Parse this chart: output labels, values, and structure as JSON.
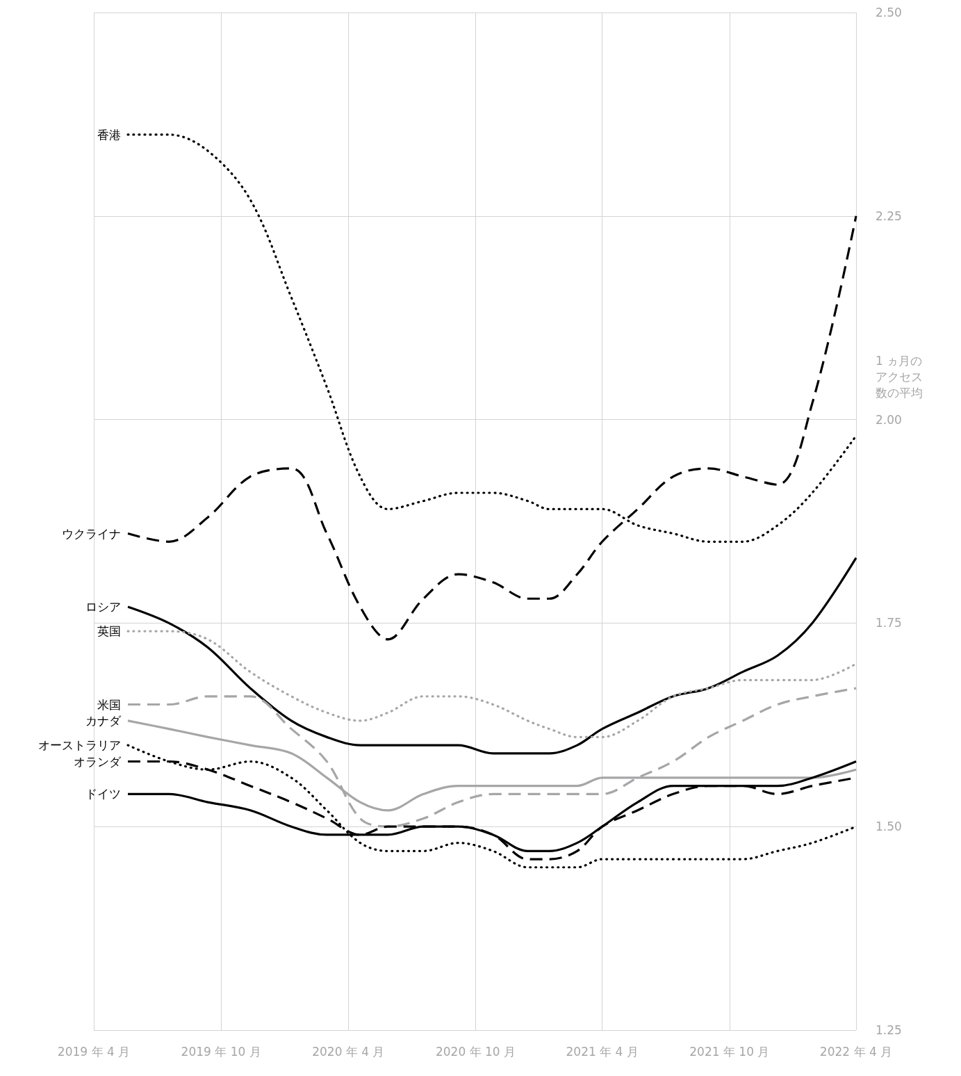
{
  "chart_data": {
    "type": "line",
    "ylabel": "1 ヵ月のアクセス数の平均",
    "x": [
      "2019-05-20",
      "2019-07-18",
      "2019-09-12",
      "2019-11-12",
      "2020-01-10",
      "2020-03-01",
      "2020-04-18",
      "2020-05-28",
      "2020-07-18",
      "2020-09-06",
      "2020-10-26",
      "2020-12-15",
      "2021-01-15",
      "2021-02-24",
      "2021-04-01",
      "2021-05-22",
      "2021-07-12",
      "2021-09-01",
      "2021-10-20",
      "2021-12-09",
      "2022-01-28",
      "2022-04-01"
    ],
    "series": [
      {
        "name": "香港",
        "color": "#000000",
        "line_style": "dotted",
        "values": [
          2.35,
          2.35,
          2.33,
          2.27,
          2.15,
          2.04,
          1.93,
          1.89,
          1.9,
          1.91,
          1.91,
          1.9,
          1.89,
          1.89,
          1.89,
          1.87,
          1.86,
          1.85,
          1.85,
          1.87,
          1.91,
          1.98
        ]
      },
      {
        "name": "ウクライナ",
        "color": "#000000",
        "line_style": "dashed",
        "values": [
          1.86,
          1.85,
          1.88,
          1.93,
          1.94,
          1.86,
          1.77,
          1.73,
          1.78,
          1.81,
          1.8,
          1.78,
          1.78,
          1.81,
          1.85,
          1.89,
          1.93,
          1.94,
          1.93,
          1.92,
          2.02,
          2.25
        ]
      },
      {
        "name": "ロシア",
        "color": "#000000",
        "line_style": "solid",
        "values": [
          1.77,
          1.75,
          1.72,
          1.67,
          1.63,
          1.61,
          1.6,
          1.6,
          1.6,
          1.6,
          1.59,
          1.59,
          1.59,
          1.6,
          1.62,
          1.64,
          1.66,
          1.67,
          1.69,
          1.71,
          1.75,
          1.83
        ]
      },
      {
        "name": "英国",
        "color": "#a6a6a8",
        "line_style": "dotted",
        "values": [
          1.74,
          1.74,
          1.73,
          1.69,
          1.66,
          1.64,
          1.63,
          1.64,
          1.66,
          1.66,
          1.65,
          1.63,
          1.62,
          1.61,
          1.61,
          1.63,
          1.66,
          1.67,
          1.68,
          1.68,
          1.68,
          1.7
        ]
      },
      {
        "name": "米国",
        "color": "#a6a6a8",
        "line_style": "dashed",
        "values": [
          1.65,
          1.65,
          1.66,
          1.66,
          1.62,
          1.58,
          1.51,
          1.5,
          1.51,
          1.53,
          1.54,
          1.54,
          1.54,
          1.54,
          1.54,
          1.56,
          1.58,
          1.61,
          1.63,
          1.65,
          1.66,
          1.67
        ]
      },
      {
        "name": "カナダ",
        "color": "#a6a6a8",
        "line_style": "solid",
        "values": [
          1.63,
          1.62,
          1.61,
          1.6,
          1.59,
          1.56,
          1.53,
          1.52,
          1.54,
          1.55,
          1.55,
          1.55,
          1.55,
          1.55,
          1.56,
          1.56,
          1.56,
          1.56,
          1.56,
          1.56,
          1.56,
          1.57
        ]
      },
      {
        "name": "オーストラリア",
        "color": "#000000",
        "line_style": "dotted",
        "values": [
          1.6,
          1.58,
          1.57,
          1.58,
          1.56,
          1.52,
          1.48,
          1.47,
          1.47,
          1.48,
          1.47,
          1.45,
          1.45,
          1.45,
          1.46,
          1.46,
          1.46,
          1.46,
          1.46,
          1.47,
          1.48,
          1.5
        ]
      },
      {
        "name": "オランダ",
        "color": "#000000",
        "line_style": "dashed",
        "values": [
          1.58,
          1.58,
          1.57,
          1.55,
          1.53,
          1.51,
          1.49,
          1.5,
          1.5,
          1.5,
          1.49,
          1.46,
          1.46,
          1.47,
          1.5,
          1.52,
          1.54,
          1.55,
          1.55,
          1.54,
          1.55,
          1.56
        ]
      },
      {
        "name": "ドイツ",
        "color": "#000000",
        "line_style": "solid",
        "values": [
          1.54,
          1.54,
          1.53,
          1.52,
          1.5,
          1.49,
          1.49,
          1.49,
          1.5,
          1.5,
          1.49,
          1.47,
          1.47,
          1.48,
          1.5,
          1.53,
          1.55,
          1.55,
          1.55,
          1.55,
          1.56,
          1.58
        ]
      }
    ],
    "xlim": [
      "2019-04",
      "2022-04"
    ],
    "xticks": [
      {
        "value": "2019-04",
        "label": "2019 年 4 月"
      },
      {
        "value": "2019-10",
        "label": "2019 年 10 月"
      },
      {
        "value": "2020-04",
        "label": "2020 年 4 月"
      },
      {
        "value": "2020-10",
        "label": "2020 年 10 月"
      },
      {
        "value": "2021-04",
        "label": "2021 年 4 月"
      },
      {
        "value": "2021-10",
        "label": "2021 年 10 月"
      },
      {
        "value": "2022-04",
        "label": "2022 年 4 月"
      }
    ],
    "ylim": [
      1.25,
      2.5
    ],
    "yticks": [
      {
        "value": 1.25,
        "label": "1.25"
      },
      {
        "value": 1.5,
        "label": "1.50"
      },
      {
        "value": 1.75,
        "label": "1.75"
      },
      {
        "value": 2,
        "label": "2.00"
      },
      {
        "value": 2.25,
        "label": "2.25"
      },
      {
        "value": 2.5,
        "label": "2.50"
      }
    ],
    "grid": true,
    "marker": "none",
    "legend": false
  }
}
